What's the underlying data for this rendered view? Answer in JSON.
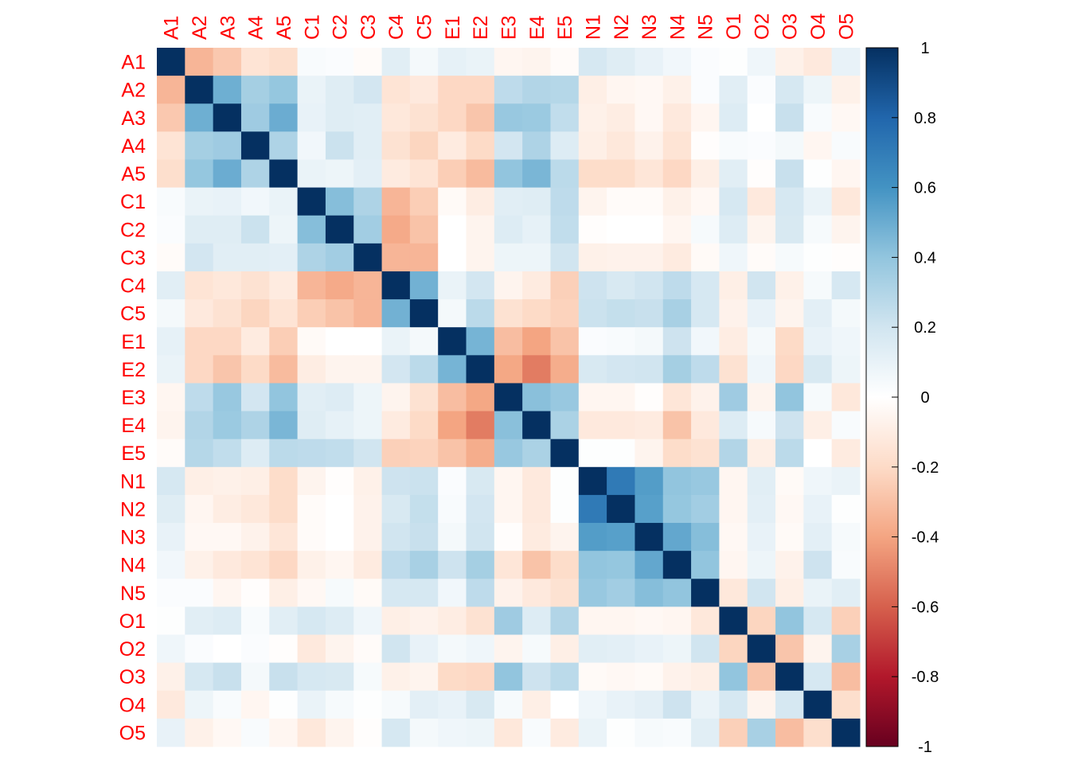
{
  "chart_data": {
    "type": "heatmap",
    "categories": [
      "A1",
      "A2",
      "A3",
      "A4",
      "A5",
      "C1",
      "C2",
      "C3",
      "C4",
      "C5",
      "E1",
      "E2",
      "E3",
      "E4",
      "E5",
      "N1",
      "N2",
      "N3",
      "N4",
      "N5",
      "O1",
      "O2",
      "O3",
      "O4",
      "O5"
    ],
    "values": [
      [
        1,
        -0.34,
        -0.27,
        -0.15,
        -0.18,
        0.03,
        0.02,
        -0.02,
        0.13,
        0.05,
        0.11,
        0.09,
        -0.05,
        -0.06,
        -0.02,
        0.18,
        0.14,
        0.1,
        0.06,
        0.02,
        0.01,
        0.07,
        -0.08,
        -0.12,
        0.1
      ],
      [
        -0.34,
        1,
        0.49,
        0.34,
        0.39,
        0.09,
        0.14,
        0.19,
        -0.15,
        -0.12,
        -0.21,
        -0.21,
        0.26,
        0.3,
        0.29,
        -0.09,
        -0.05,
        -0.04,
        -0.08,
        0.02,
        0.13,
        0.02,
        0.18,
        0.08,
        -0.08
      ],
      [
        -0.27,
        0.49,
        1,
        0.36,
        0.5,
        0.1,
        0.14,
        0.13,
        -0.13,
        -0.16,
        -0.21,
        -0.28,
        0.38,
        0.37,
        0.25,
        -0.08,
        -0.1,
        -0.04,
        -0.12,
        -0.05,
        0.15,
        0.0,
        0.23,
        0.03,
        -0.04
      ],
      [
        -0.15,
        0.34,
        0.36,
        1,
        0.31,
        0.06,
        0.22,
        0.13,
        -0.16,
        -0.22,
        -0.11,
        -0.2,
        0.19,
        0.31,
        0.15,
        -0.09,
        -0.13,
        -0.07,
        -0.15,
        -0.01,
        0.03,
        0.02,
        0.05,
        -0.05,
        0.03
      ],
      [
        -0.18,
        0.39,
        0.5,
        0.31,
        1,
        0.09,
        0.08,
        0.12,
        -0.11,
        -0.15,
        -0.25,
        -0.32,
        0.4,
        0.46,
        0.27,
        -0.19,
        -0.19,
        -0.14,
        -0.21,
        -0.09,
        0.13,
        -0.01,
        0.23,
        0.01,
        -0.05
      ],
      [
        0.03,
        0.09,
        0.1,
        0.06,
        0.09,
        1,
        0.43,
        0.31,
        -0.34,
        -0.25,
        -0.03,
        -0.1,
        0.13,
        0.14,
        0.26,
        -0.06,
        -0.02,
        -0.02,
        -0.08,
        -0.04,
        0.18,
        -0.12,
        0.18,
        0.09,
        -0.13
      ],
      [
        0.02,
        0.14,
        0.14,
        0.22,
        0.08,
        0.43,
        1,
        0.35,
        -0.38,
        -0.29,
        0.0,
        -0.06,
        0.15,
        0.11,
        0.25,
        -0.01,
        0.0,
        0.0,
        -0.05,
        0.04,
        0.15,
        -0.06,
        0.17,
        0.04,
        -0.06
      ],
      [
        -0.02,
        0.19,
        0.13,
        0.13,
        0.12,
        0.31,
        0.35,
        1,
        -0.34,
        -0.34,
        0.0,
        -0.06,
        0.08,
        0.08,
        0.2,
        -0.08,
        -0.07,
        -0.07,
        -0.11,
        -0.03,
        0.07,
        -0.02,
        0.04,
        0.01,
        -0.01
      ],
      [
        0.13,
        -0.15,
        -0.13,
        -0.16,
        -0.11,
        -0.34,
        -0.38,
        -0.34,
        1,
        0.48,
        0.09,
        0.19,
        -0.06,
        -0.11,
        -0.24,
        0.21,
        0.17,
        0.2,
        0.26,
        0.18,
        -0.09,
        0.2,
        -0.08,
        0.04,
        0.18
      ],
      [
        0.05,
        -0.12,
        -0.16,
        -0.22,
        -0.15,
        -0.25,
        -0.29,
        -0.34,
        0.48,
        1,
        0.05,
        0.27,
        -0.16,
        -0.2,
        -0.23,
        0.22,
        0.24,
        0.23,
        0.33,
        0.18,
        -0.07,
        0.1,
        -0.06,
        0.12,
        0.05
      ],
      [
        0.11,
        -0.21,
        -0.21,
        -0.11,
        -0.25,
        -0.03,
        0.0,
        0.0,
        0.09,
        0.05,
        1,
        0.47,
        -0.31,
        -0.4,
        -0.29,
        0.02,
        0.03,
        0.05,
        0.21,
        0.06,
        -0.1,
        0.05,
        -0.2,
        0.1,
        0.07
      ],
      [
        0.09,
        -0.21,
        -0.28,
        -0.2,
        -0.32,
        -0.1,
        -0.06,
        -0.06,
        0.19,
        0.27,
        0.47,
        1,
        -0.39,
        -0.52,
        -0.37,
        0.17,
        0.19,
        0.2,
        0.34,
        0.26,
        -0.16,
        0.07,
        -0.21,
        0.17,
        0.08
      ],
      [
        -0.05,
        0.26,
        0.38,
        0.19,
        0.4,
        0.13,
        0.15,
        0.08,
        -0.06,
        -0.16,
        -0.31,
        -0.39,
        1,
        0.42,
        0.38,
        -0.05,
        -0.05,
        -0.01,
        -0.14,
        -0.07,
        0.36,
        -0.06,
        0.4,
        0.04,
        -0.13
      ],
      [
        -0.06,
        0.3,
        0.37,
        0.31,
        0.46,
        0.14,
        0.11,
        0.08,
        -0.11,
        -0.2,
        -0.4,
        -0.52,
        0.42,
        1,
        0.32,
        -0.12,
        -0.12,
        -0.11,
        -0.29,
        -0.12,
        0.15,
        0.04,
        0.21,
        -0.09,
        0.03
      ],
      [
        -0.02,
        0.29,
        0.25,
        0.15,
        0.27,
        0.26,
        0.25,
        0.2,
        -0.24,
        -0.23,
        -0.29,
        -0.37,
        0.38,
        0.32,
        1,
        0.01,
        0.01,
        -0.06,
        -0.19,
        -0.16,
        0.3,
        -0.09,
        0.27,
        0.0,
        -0.11
      ],
      [
        0.18,
        -0.09,
        -0.08,
        -0.09,
        -0.19,
        -0.06,
        -0.01,
        -0.08,
        0.21,
        0.22,
        0.02,
        0.17,
        -0.05,
        -0.12,
        0.01,
        1,
        0.71,
        0.56,
        0.4,
        0.38,
        -0.05,
        0.13,
        -0.03,
        0.07,
        0.09
      ],
      [
        0.14,
        -0.05,
        -0.1,
        -0.13,
        -0.19,
        -0.02,
        0.0,
        -0.07,
        0.17,
        0.24,
        0.03,
        0.19,
        -0.05,
        -0.12,
        0.01,
        0.71,
        1,
        0.55,
        0.39,
        0.35,
        -0.05,
        0.12,
        -0.04,
        0.1,
        0.01
      ],
      [
        0.1,
        -0.04,
        -0.04,
        -0.07,
        -0.14,
        -0.02,
        0.0,
        -0.07,
        0.2,
        0.23,
        0.05,
        0.2,
        -0.01,
        -0.11,
        -0.06,
        0.56,
        0.55,
        1,
        0.52,
        0.43,
        -0.04,
        0.1,
        -0.03,
        0.12,
        0.04
      ],
      [
        0.06,
        -0.08,
        -0.12,
        -0.15,
        -0.21,
        -0.08,
        -0.05,
        -0.11,
        0.26,
        0.33,
        0.21,
        0.34,
        -0.14,
        -0.29,
        -0.19,
        0.4,
        0.39,
        0.52,
        1,
        0.4,
        -0.05,
        0.08,
        -0.07,
        0.21,
        0.03
      ],
      [
        0.02,
        0.02,
        -0.05,
        -0.01,
        -0.09,
        -0.04,
        0.04,
        -0.03,
        0.18,
        0.18,
        0.06,
        0.26,
        -0.07,
        -0.12,
        -0.16,
        0.38,
        0.35,
        0.43,
        0.4,
        1,
        -0.13,
        0.2,
        -0.09,
        0.09,
        0.13
      ],
      [
        0.01,
        0.13,
        0.15,
        0.03,
        0.13,
        0.18,
        0.15,
        0.07,
        -0.09,
        -0.07,
        -0.1,
        -0.16,
        0.36,
        0.15,
        0.3,
        -0.05,
        -0.05,
        -0.04,
        -0.05,
        -0.13,
        1,
        -0.22,
        0.4,
        0.18,
        -0.24
      ],
      [
        0.07,
        0.02,
        0.0,
        0.02,
        -0.01,
        -0.12,
        -0.06,
        -0.02,
        0.2,
        0.1,
        0.05,
        0.07,
        -0.06,
        0.04,
        -0.09,
        0.13,
        0.12,
        0.1,
        0.08,
        0.2,
        -0.22,
        1,
        -0.28,
        -0.06,
        0.33
      ],
      [
        -0.08,
        0.18,
        0.23,
        0.05,
        0.23,
        0.18,
        0.17,
        0.04,
        -0.08,
        -0.06,
        -0.2,
        -0.21,
        0.4,
        0.21,
        0.27,
        -0.03,
        -0.04,
        -0.03,
        -0.07,
        -0.09,
        0.4,
        -0.28,
        1,
        0.18,
        -0.31
      ],
      [
        -0.12,
        0.08,
        0.03,
        -0.05,
        0.01,
        0.09,
        0.04,
        0.01,
        0.04,
        0.12,
        0.1,
        0.17,
        0.04,
        -0.09,
        0.0,
        0.07,
        0.1,
        0.12,
        0.21,
        0.09,
        0.18,
        -0.06,
        0.18,
        1,
        -0.18
      ],
      [
        0.1,
        -0.08,
        -0.04,
        0.03,
        -0.05,
        -0.13,
        -0.06,
        -0.01,
        0.18,
        0.05,
        0.07,
        0.08,
        -0.13,
        0.03,
        -0.11,
        0.09,
        0.01,
        0.04,
        0.03,
        0.13,
        -0.24,
        0.33,
        -0.31,
        -0.18,
        1
      ]
    ],
    "colorscale": [
      "#67001F",
      "#B2182B",
      "#D6604D",
      "#F4A582",
      "#FDDBC7",
      "#FFFFFF",
      "#D1E5F0",
      "#92C5DE",
      "#4393C3",
      "#2166AC",
      "#053061"
    ],
    "label_color": "#FF0000",
    "clim": [
      -1,
      1
    ],
    "cticks": [
      -1,
      -0.8,
      -0.6,
      -0.4,
      -0.2,
      0,
      0.2,
      0.4,
      0.6,
      0.8,
      1
    ]
  }
}
